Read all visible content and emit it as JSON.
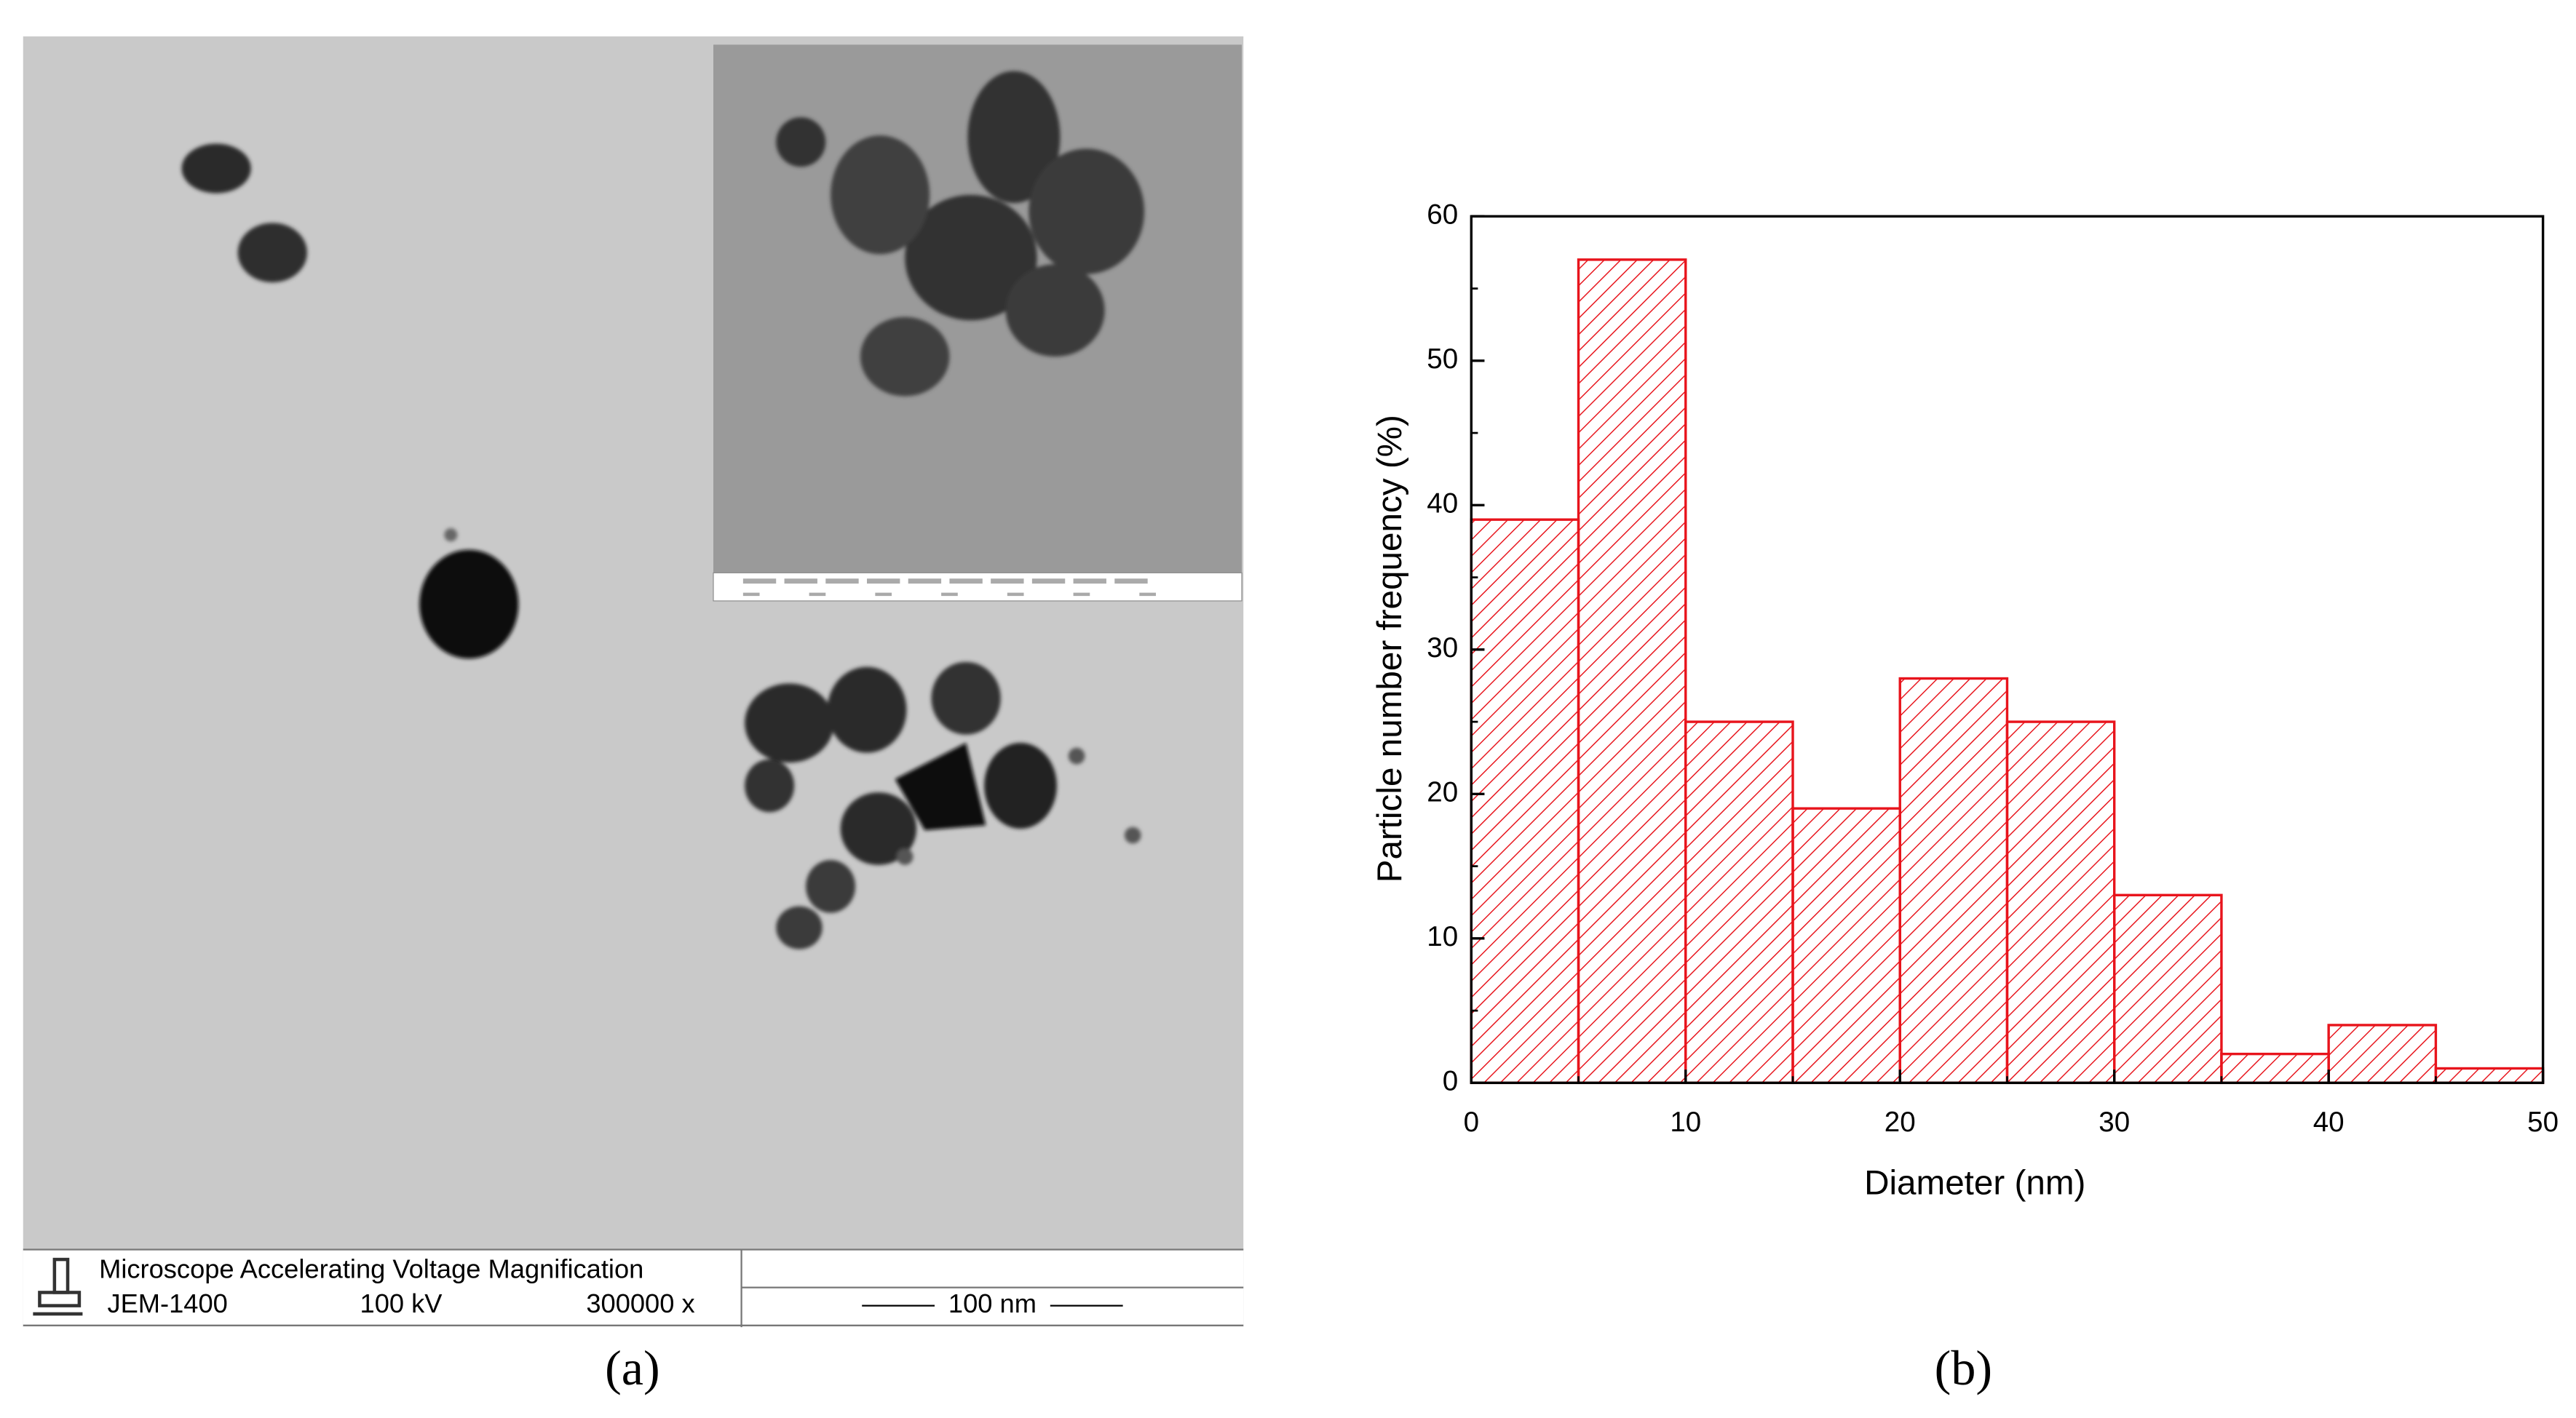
{
  "micrograph": {
    "header": "Microscope Accelerating Voltage Magnification",
    "microscope": "JEM-1400",
    "voltage": "100 kV",
    "magnification": "300000 x",
    "scale_bar": "100 nm",
    "panel_label": "(a)"
  },
  "chart_data": {
    "type": "histogram",
    "panel_label": "(b)",
    "x_label": "Diameter (nm)",
    "y_label": "Particle number frequency (%)",
    "bins": [
      0,
      5,
      10,
      15,
      20,
      25,
      30,
      35,
      40,
      45,
      50
    ],
    "values": [
      39,
      57,
      25,
      19,
      28,
      25,
      13,
      2,
      4,
      1
    ],
    "color": "#e8141c",
    "hatch": true,
    "xlim": [
      0,
      50
    ],
    "xticks": [
      0,
      10,
      20,
      30,
      40,
      50
    ],
    "ylim": [
      0,
      60
    ],
    "yticks": [
      0,
      10,
      20,
      30,
      40,
      50,
      60
    ]
  }
}
